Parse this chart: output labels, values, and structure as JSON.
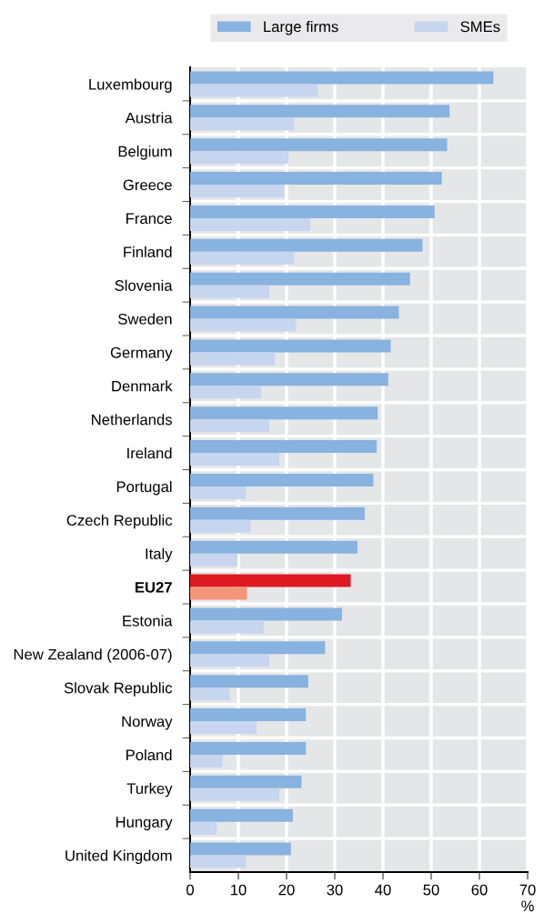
{
  "chart_data": {
    "type": "bar",
    "orientation": "horizontal",
    "categories": [
      "Luxembourg",
      "Austria",
      "Belgium",
      "Greece",
      "France",
      "Finland",
      "Slovenia",
      "Sweden",
      "Germany",
      "Denmark",
      "Netherlands",
      "Ireland",
      "Portugal",
      "Czech Republic",
      "Italy",
      "EU27",
      "Estonia",
      "New Zealand (2006-07)",
      "Slovak Republic",
      "Norway",
      "Poland",
      "Turkey",
      "Hungary",
      "United Kingdom"
    ],
    "series": [
      {
        "name": "Large firms",
        "color": "#88b2df",
        "colors": [
          "#88b2df",
          "#88b2df",
          "#88b2df",
          "#88b2df",
          "#88b2df",
          "#88b2df",
          "#88b2df",
          "#88b2df",
          "#88b2df",
          "#88b2df",
          "#88b2df",
          "#88b2df",
          "#88b2df",
          "#88b2df",
          "#88b2df",
          "#dd1a22",
          "#88b2df",
          "#88b2df",
          "#88b2df",
          "#88b2df",
          "#88b2df",
          "#88b2df",
          "#88b2df",
          "#88b2df"
        ],
        "values": [
          62.9,
          53.8,
          53.3,
          52.2,
          50.7,
          48.2,
          45.6,
          43.3,
          41.6,
          41.1,
          38.9,
          38.7,
          38.0,
          36.2,
          34.7,
          33.3,
          31.5,
          28.0,
          24.5,
          24.0,
          24.0,
          23.1,
          21.3,
          20.9
        ]
      },
      {
        "name": "SMEs",
        "color": "#c7d5ee",
        "colors": [
          "#c7d5ee",
          "#c7d5ee",
          "#c7d5ee",
          "#c7d5ee",
          "#c7d5ee",
          "#c7d5ee",
          "#c7d5ee",
          "#c7d5ee",
          "#c7d5ee",
          "#c7d5ee",
          "#c7d5ee",
          "#c7d5ee",
          "#c7d5ee",
          "#c7d5ee",
          "#c7d5ee",
          "#f4967a",
          "#c7d5ee",
          "#c7d5ee",
          "#c7d5ee",
          "#c7d5ee",
          "#c7d5ee",
          "#c7d5ee",
          "#c7d5ee",
          "#c7d5ee"
        ],
        "values": [
          26.5,
          21.6,
          20.4,
          19.5,
          24.9,
          21.6,
          16.4,
          22.0,
          17.6,
          14.7,
          16.4,
          18.5,
          11.6,
          12.5,
          9.8,
          11.8,
          15.3,
          16.4,
          8.2,
          13.8,
          6.7,
          18.5,
          5.5,
          11.6
        ]
      }
    ],
    "xlabel": "%",
    "xlim": [
      0,
      70
    ],
    "xticks": [
      0,
      10,
      20,
      30,
      40,
      50,
      60,
      70
    ],
    "grid": true,
    "legend": "top"
  }
}
